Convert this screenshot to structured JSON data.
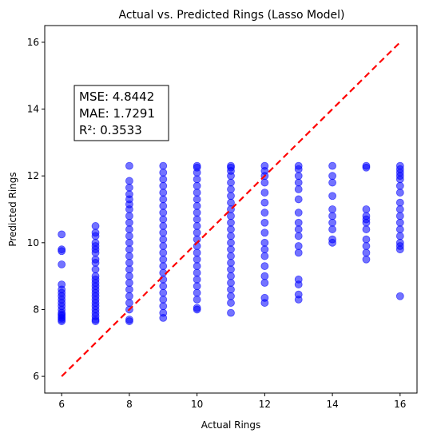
{
  "chart_data": {
    "type": "scatter",
    "title": "Actual vs. Predicted Rings (Lasso Model)",
    "xlabel": "Actual Rings",
    "ylabel": "Predicted Rings",
    "xlim": [
      5.5,
      16.5
    ],
    "ylim": [
      5.5,
      16.5
    ],
    "xticks": [
      6,
      8,
      10,
      12,
      14,
      16
    ],
    "yticks": [
      6,
      8,
      10,
      12,
      14,
      16
    ],
    "grid": false,
    "point_color": "#0000ff",
    "point_alpha": 0.55,
    "reference_line": {
      "x": [
        6,
        16
      ],
      "y": [
        6,
        16
      ],
      "color": "#ff0000",
      "style": "dashed"
    },
    "stats": [
      "MSE: 4.8442",
      "MAE: 1.7291",
      "R²: 0.3533"
    ],
    "series": [
      {
        "x": 6,
        "y": [
          7.65,
          7.7,
          7.75,
          7.8,
          7.85,
          7.9,
          8.0,
          8.1,
          8.2,
          8.3,
          8.4,
          8.5,
          8.6,
          8.75,
          9.35,
          9.75,
          9.8,
          10.25
        ]
      },
      {
        "x": 7,
        "y": [
          7.65,
          7.7,
          7.8,
          7.9,
          8.0,
          8.1,
          8.2,
          8.3,
          8.4,
          8.5,
          8.6,
          8.7,
          8.8,
          8.9,
          9.0,
          9.2,
          9.4,
          9.5,
          9.7,
          9.8,
          9.9,
          10.0,
          10.2,
          10.3,
          10.5
        ]
      },
      {
        "x": 8,
        "y": [
          7.65,
          7.7,
          8.0,
          8.2,
          8.4,
          8.6,
          8.8,
          9.0,
          9.2,
          9.4,
          9.6,
          9.8,
          10.0,
          10.2,
          10.4,
          10.6,
          10.8,
          11.0,
          11.15,
          11.3,
          11.45,
          11.65,
          11.85,
          12.3
        ]
      },
      {
        "x": 9,
        "y": [
          7.75,
          7.9,
          8.1,
          8.3,
          8.5,
          8.7,
          8.9,
          9.1,
          9.3,
          9.5,
          9.7,
          9.9,
          10.1,
          10.3,
          10.5,
          10.7,
          10.9,
          11.1,
          11.3,
          11.5,
          11.7,
          11.9,
          12.1,
          12.3
        ]
      },
      {
        "x": 10,
        "y": [
          8.0,
          8.05,
          8.3,
          8.5,
          8.7,
          8.9,
          9.1,
          9.3,
          9.5,
          9.7,
          9.9,
          10.1,
          10.3,
          10.5,
          10.7,
          10.9,
          11.1,
          11.3,
          11.5,
          11.7,
          11.9,
          12.1,
          12.25,
          12.3
        ]
      },
      {
        "x": 11,
        "y": [
          7.9,
          8.2,
          8.4,
          8.6,
          8.8,
          9.0,
          9.2,
          9.4,
          9.6,
          9.8,
          10.0,
          10.2,
          10.4,
          10.6,
          10.8,
          11.0,
          11.2,
          11.4,
          11.6,
          11.8,
          12.0,
          12.15,
          12.25,
          12.3
        ]
      },
      {
        "x": 12,
        "y": [
          8.2,
          8.35,
          8.8,
          9.0,
          9.3,
          9.6,
          9.8,
          10.0,
          10.3,
          10.6,
          10.9,
          11.2,
          11.5,
          11.8,
          12.0,
          12.15,
          12.3
        ]
      },
      {
        "x": 13,
        "y": [
          8.3,
          8.45,
          8.75,
          8.9,
          9.7,
          9.9,
          10.2,
          10.4,
          10.6,
          10.9,
          11.3,
          11.6,
          11.8,
          12.0,
          12.2,
          12.3
        ]
      },
      {
        "x": 14,
        "y": [
          10.0,
          10.1,
          10.4,
          10.6,
          10.8,
          11.0,
          11.4,
          11.8,
          12.0,
          12.3
        ]
      },
      {
        "x": 15,
        "y": [
          9.5,
          9.7,
          9.9,
          10.1,
          10.4,
          10.6,
          10.7,
          10.8,
          11.0,
          12.25,
          12.3
        ]
      },
      {
        "x": 16,
        "y": [
          8.4,
          9.8,
          9.9,
          10.0,
          10.2,
          10.4,
          10.6,
          10.8,
          11.0,
          11.2,
          11.5,
          11.7,
          11.9,
          12.0,
          12.1,
          12.2,
          12.3
        ]
      }
    ]
  }
}
